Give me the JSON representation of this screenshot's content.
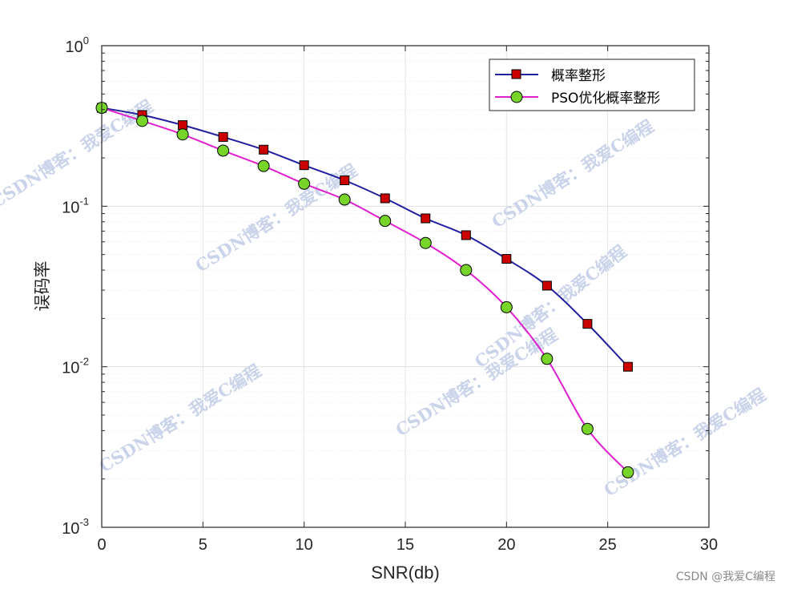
{
  "chart_data": {
    "type": "line",
    "title": "",
    "xlabel": "SNR(db)",
    "ylabel": "误码率",
    "xlim": [
      0,
      30
    ],
    "ylim": [
      0.001,
      1
    ],
    "yscale": "log",
    "grid": true,
    "legend_position": "top-right",
    "x_ticks": [
      0,
      5,
      10,
      15,
      20,
      25,
      30
    ],
    "y_ticks": [
      {
        "value": 1,
        "base": "10",
        "exp": "0"
      },
      {
        "value": 0.1,
        "base": "10",
        "exp": "-1"
      },
      {
        "value": 0.01,
        "base": "10",
        "exp": "-2"
      },
      {
        "value": 0.001,
        "base": "10",
        "exp": "-3"
      }
    ],
    "series": [
      {
        "name": "概率整形",
        "color": "#1f1f9f",
        "marker": "square",
        "marker_fill": "#cc0000",
        "x": [
          0,
          2,
          4,
          6,
          8,
          10,
          12,
          14,
          16,
          18,
          20,
          22,
          24,
          26
        ],
        "y": [
          0.41,
          0.37,
          0.32,
          0.27,
          0.225,
          0.18,
          0.145,
          0.112,
          0.084,
          0.066,
          0.047,
          0.032,
          0.0185,
          0.01
        ]
      },
      {
        "name": "PSO优化概率整形",
        "color": "#e020d0",
        "marker": "circle",
        "marker_fill": "#77d52a",
        "x": [
          0,
          2,
          4,
          6,
          8,
          10,
          12,
          14,
          16,
          18,
          20,
          22,
          24,
          26
        ],
        "y": [
          0.41,
          0.34,
          0.28,
          0.222,
          0.178,
          0.138,
          0.11,
          0.081,
          0.059,
          0.04,
          0.0235,
          0.0112,
          0.0041,
          0.0022
        ]
      }
    ]
  },
  "watermarks": [
    "CSDN博客：我爱C编程",
    "CSDN博客：我爱C编程",
    "CSDN博客：我爱C编程",
    "CSDN博客：我爱C编程",
    "CSDN博客：我爱C编程",
    "CSDN博客：我爱C编程",
    "CSDN博客：我爱C编程"
  ],
  "footer": "CSDN @我爱C编程"
}
